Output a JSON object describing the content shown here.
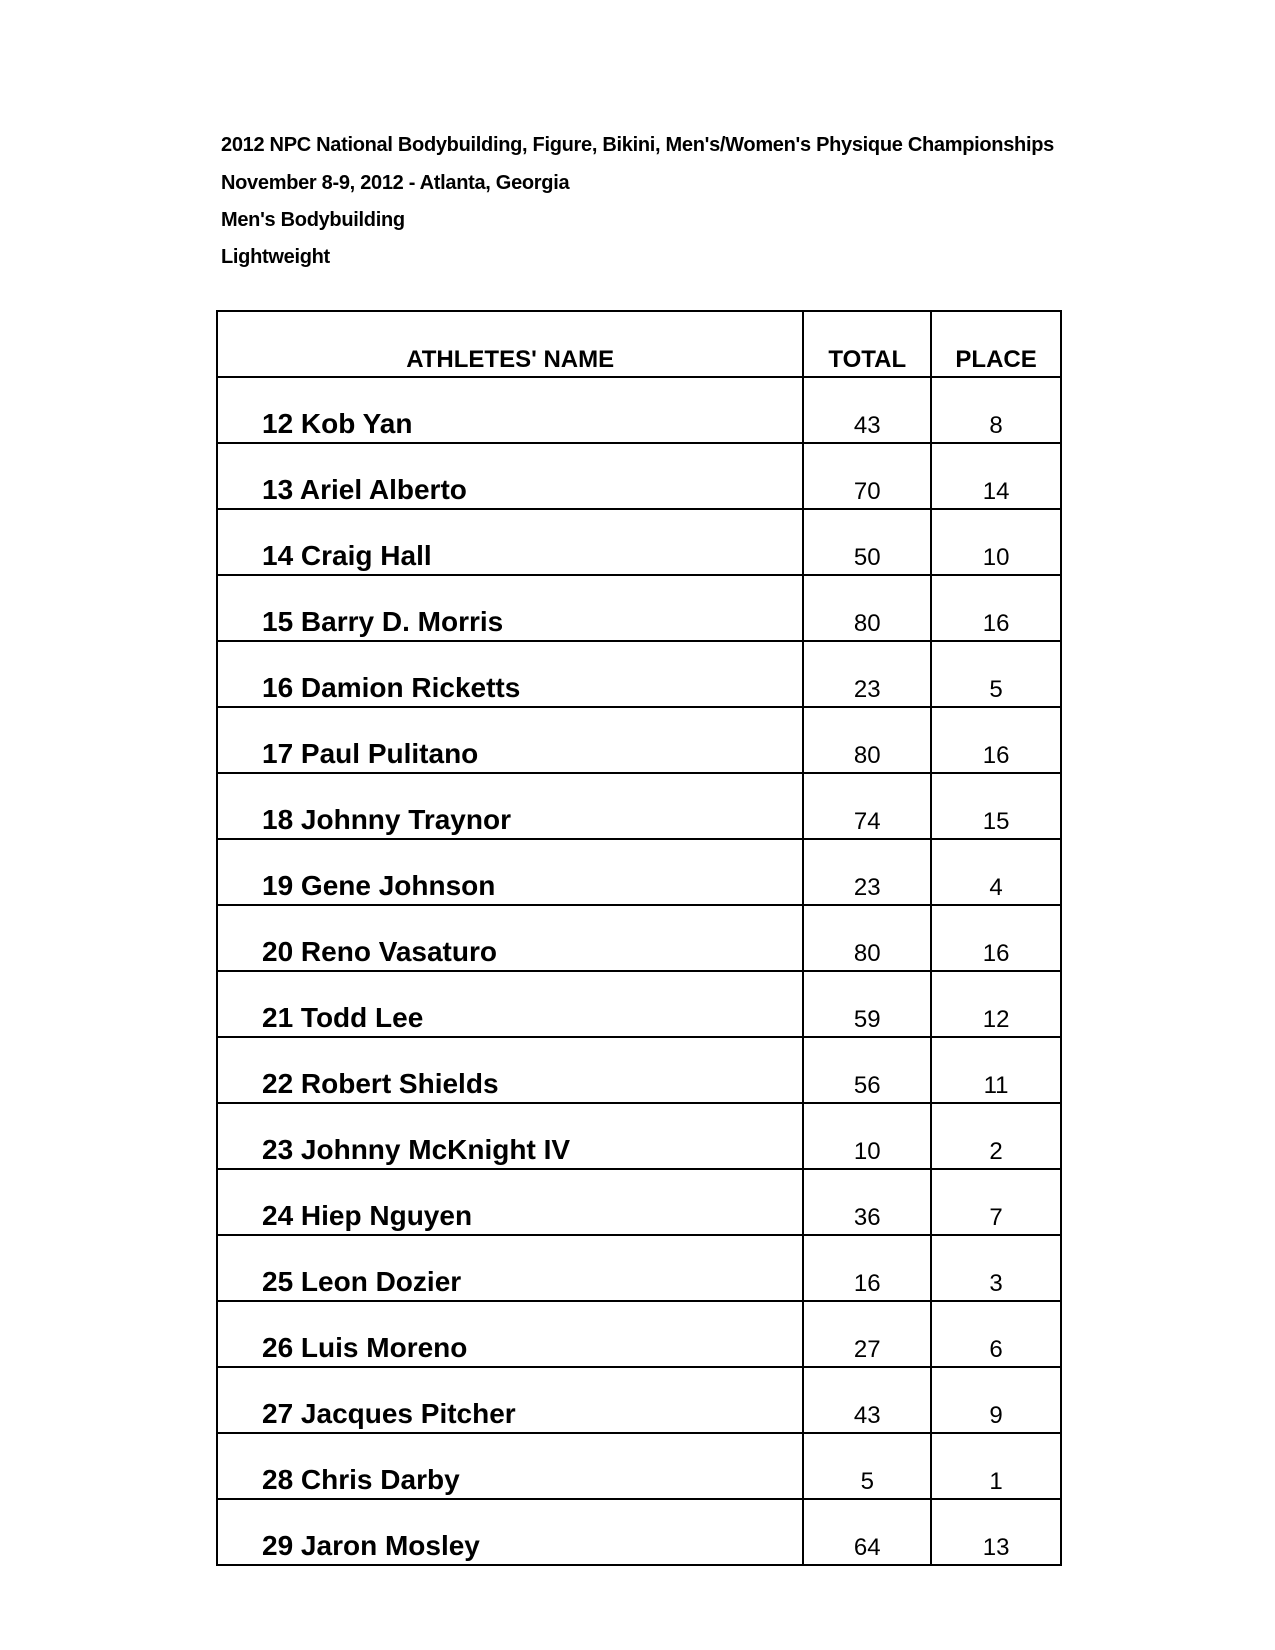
{
  "header": {
    "line1": "2012 NPC National Bodybuilding, Figure, Bikini, Men's/Women's Physique Championships",
    "line2": "November 8-9, 2012 - Atlanta, Georgia",
    "line3": "Men's Bodybuilding",
    "line4": "Lightweight"
  },
  "table": {
    "columns": [
      "ATHLETES' NAME",
      "TOTAL",
      "PLACE"
    ],
    "rows": [
      {
        "name": "12 Kob Yan",
        "total": "43",
        "place": "8"
      },
      {
        "name": "13 Ariel Alberto",
        "total": "70",
        "place": "14"
      },
      {
        "name": "14 Craig Hall",
        "total": "50",
        "place": "10"
      },
      {
        "name": "15 Barry D. Morris",
        "total": "80",
        "place": "16"
      },
      {
        "name": "16 Damion Ricketts",
        "total": "23",
        "place": "5"
      },
      {
        "name": "17 Paul Pulitano",
        "total": "80",
        "place": "16"
      },
      {
        "name": "18 Johnny Traynor",
        "total": "74",
        "place": "15"
      },
      {
        "name": "19 Gene Johnson",
        "total": "23",
        "place": "4"
      },
      {
        "name": "20 Reno Vasaturo",
        "total": "80",
        "place": "16"
      },
      {
        "name": "21 Todd Lee",
        "total": "59",
        "place": "12"
      },
      {
        "name": "22 Robert Shields",
        "total": "56",
        "place": "11"
      },
      {
        "name": "23 Johnny McKnight IV",
        "total": "10",
        "place": "2"
      },
      {
        "name": "24 Hiep Nguyen",
        "total": "36",
        "place": "7"
      },
      {
        "name": "25 Leon Dozier",
        "total": "16",
        "place": "3"
      },
      {
        "name": "26 Luis Moreno",
        "total": "27",
        "place": "6"
      },
      {
        "name": "27 Jacques Pitcher",
        "total": "43",
        "place": "9"
      },
      {
        "name": "28 Chris Darby",
        "total": "5",
        "place": "1"
      },
      {
        "name": "29 Jaron Mosley",
        "total": "64",
        "place": "13"
      }
    ]
  }
}
